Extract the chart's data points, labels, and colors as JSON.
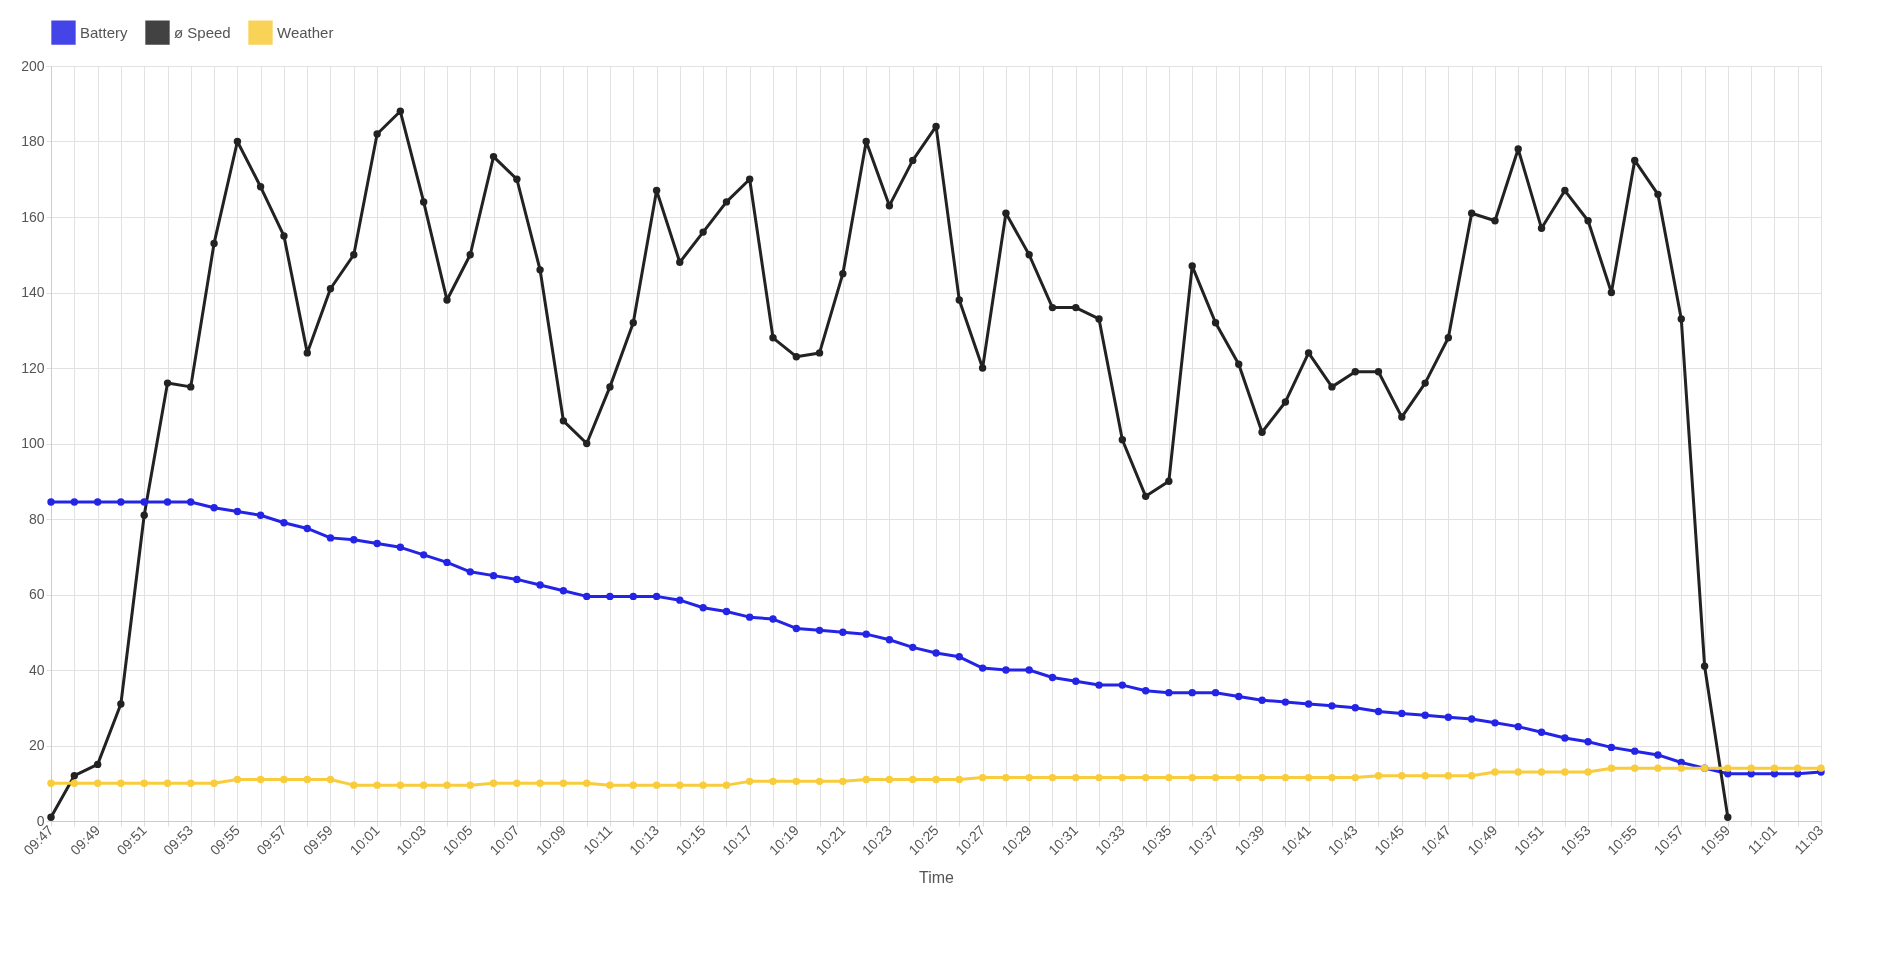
{
  "chart_data": {
    "type": "line",
    "xlabel": "Time",
    "legend": "top",
    "grid": true,
    "marker": "circle",
    "line_style": "solid",
    "x": [
      9.7833,
      9.8,
      9.8167,
      9.8333,
      9.85,
      9.8667,
      9.8833,
      9.9,
      9.9167,
      9.9333,
      9.95,
      9.9667,
      9.9833,
      10,
      10.0167,
      10.0333,
      10.05,
      10.0667,
      10.0833,
      10.1,
      10.1167,
      10.1333,
      10.15,
      10.1667,
      10.1833,
      10.2,
      10.2167,
      10.2333,
      10.25,
      10.2667,
      10.2833,
      10.3,
      10.3167,
      10.3333,
      10.35,
      10.3667,
      10.3833,
      10.4,
      10.4167,
      10.4333,
      10.45,
      10.4667,
      10.4833,
      10.5,
      10.5167,
      10.5333,
      10.55,
      10.5667,
      10.5833,
      10.6,
      10.6167,
      10.6333,
      10.65,
      10.6667,
      10.6833,
      10.7,
      10.7167,
      10.7333,
      10.75,
      10.7667,
      10.7833,
      10.8,
      10.8167,
      10.8333,
      10.85,
      10.8667,
      10.8833,
      10.9,
      10.9167,
      10.9333,
      10.95,
      10.9667,
      10.9833,
      11,
      11.0167,
      11.0333,
      11.05
    ],
    "series": [
      {
        "name": "Battery",
        "color": "#2424e6",
        "values": [
          84.5,
          84.5,
          84.5,
          84.5,
          84.5,
          84.5,
          84.5,
          83,
          82,
          81,
          79,
          77.5,
          75,
          74.5,
          73.5,
          72.5,
          70.5,
          68.5,
          66,
          65,
          64,
          62.5,
          61,
          59.5,
          59.5,
          59.5,
          59.5,
          58.5,
          56.5,
          55.5,
          54,
          53.5,
          51,
          50.5,
          50,
          49.5,
          48,
          46,
          44.5,
          43.5,
          40.5,
          40,
          40,
          38,
          37,
          36,
          36,
          34.5,
          34,
          34,
          34,
          33,
          32,
          31.5,
          31,
          30.5,
          30,
          29,
          28.5,
          28,
          27.5,
          27,
          26,
          25,
          23.5,
          22,
          21,
          19.5,
          18.5,
          17.5,
          15.5,
          14,
          12.5,
          12.5,
          12.5,
          12.5,
          13
        ]
      },
      {
        "name": "ø Speed",
        "color": "#222222",
        "values": [
          1,
          12,
          15,
          31,
          81,
          116,
          115,
          153,
          180,
          168,
          155,
          124,
          141,
          150,
          182,
          188,
          164,
          138,
          150,
          176,
          170,
          146,
          106,
          100,
          115,
          132,
          167,
          148,
          156,
          164,
          170,
          128,
          123,
          124,
          145,
          180,
          163,
          175,
          184,
          138,
          120,
          161,
          150,
          136,
          136,
          133,
          101,
          86,
          90,
          147,
          132,
          121,
          103,
          111,
          124,
          115,
          119,
          119,
          107,
          116,
          128,
          161,
          159,
          178,
          157,
          167,
          159,
          140,
          175,
          166,
          133,
          41,
          1,
          null,
          null,
          null,
          null
        ]
      },
      {
        "name": "Weather",
        "color": "#f9cc3c",
        "values": [
          10,
          10,
          10,
          10,
          10,
          10,
          10,
          10,
          11,
          11,
          11,
          11,
          11,
          9.5,
          9.5,
          9.5,
          9.5,
          9.5,
          9.5,
          10,
          10,
          10,
          10,
          10,
          9.5,
          9.5,
          9.5,
          9.5,
          9.5,
          9.5,
          10.5,
          10.5,
          10.5,
          10.5,
          10.5,
          11,
          11,
          11,
          11,
          11,
          11.5,
          11.5,
          11.5,
          11.5,
          11.5,
          11.5,
          11.5,
          11.5,
          11.5,
          11.5,
          11.5,
          11.5,
          11.5,
          11.5,
          11.5,
          11.5,
          11.5,
          12,
          12,
          12,
          12,
          12,
          13,
          13,
          13,
          13,
          13,
          14,
          14,
          14,
          14,
          14,
          14,
          14,
          14,
          14,
          14
        ]
      }
    ],
    "ylim": [
      0,
      200
    ],
    "yticks": [
      0,
      20,
      40,
      60,
      80,
      100,
      120,
      140,
      160,
      180,
      200
    ],
    "xlim": [
      9.7833,
      11.05
    ],
    "xticks": [
      {
        "value": 9.7833,
        "label": "09:47"
      },
      {
        "value": 9.8,
        "label": null
      },
      {
        "value": 9.8167,
        "label": "09:49"
      },
      {
        "value": 9.8333,
        "label": null
      },
      {
        "value": 9.85,
        "label": "09:51"
      },
      {
        "value": 9.8667,
        "label": null
      },
      {
        "value": 9.8833,
        "label": "09:53"
      },
      {
        "value": 9.9,
        "label": null
      },
      {
        "value": 9.9167,
        "label": "09:55"
      },
      {
        "value": 9.9333,
        "label": null
      },
      {
        "value": 9.95,
        "label": "09:57"
      },
      {
        "value": 9.9667,
        "label": null
      },
      {
        "value": 9.9833,
        "label": "09:59"
      },
      {
        "value": 10,
        "label": null
      },
      {
        "value": 10.0167,
        "label": "10:01"
      },
      {
        "value": 10.0333,
        "label": null
      },
      {
        "value": 10.05,
        "label": "10:03"
      },
      {
        "value": 10.0667,
        "label": null
      },
      {
        "value": 10.0833,
        "label": "10:05"
      },
      {
        "value": 10.1,
        "label": null
      },
      {
        "value": 10.1167,
        "label": "10:07"
      },
      {
        "value": 10.1333,
        "label": null
      },
      {
        "value": 10.15,
        "label": "10:09"
      },
      {
        "value": 10.1667,
        "label": null
      },
      {
        "value": 10.1833,
        "label": "10:11"
      },
      {
        "value": 10.2,
        "label": null
      },
      {
        "value": 10.2167,
        "label": "10:13"
      },
      {
        "value": 10.2333,
        "label": null
      },
      {
        "value": 10.25,
        "label": "10:15"
      },
      {
        "value": 10.2667,
        "label": null
      },
      {
        "value": 10.2833,
        "label": "10:17"
      },
      {
        "value": 10.3,
        "label": null
      },
      {
        "value": 10.3167,
        "label": "10:19"
      },
      {
        "value": 10.3333,
        "label": null
      },
      {
        "value": 10.35,
        "label": "10:21"
      },
      {
        "value": 10.3667,
        "label": null
      },
      {
        "value": 10.3833,
        "label": "10:23"
      },
      {
        "value": 10.4,
        "label": null
      },
      {
        "value": 10.4167,
        "label": "10:25"
      },
      {
        "value": 10.4333,
        "label": null
      },
      {
        "value": 10.45,
        "label": "10:27"
      },
      {
        "value": 10.4667,
        "label": null
      },
      {
        "value": 10.4833,
        "label": "10:29"
      },
      {
        "value": 10.5,
        "label": null
      },
      {
        "value": 10.5167,
        "label": "10:31"
      },
      {
        "value": 10.5333,
        "label": null
      },
      {
        "value": 10.55,
        "label": "10:33"
      },
      {
        "value": 10.5667,
        "label": null
      },
      {
        "value": 10.5833,
        "label": "10:35"
      },
      {
        "value": 10.6,
        "label": null
      },
      {
        "value": 10.6167,
        "label": "10:37"
      },
      {
        "value": 10.6333,
        "label": null
      },
      {
        "value": 10.65,
        "label": "10:39"
      },
      {
        "value": 10.6667,
        "label": null
      },
      {
        "value": 10.6833,
        "label": "10:41"
      },
      {
        "value": 10.7,
        "label": null
      },
      {
        "value": 10.7167,
        "label": "10:43"
      },
      {
        "value": 10.7333,
        "label": null
      },
      {
        "value": 10.75,
        "label": "10:45"
      },
      {
        "value": 10.7667,
        "label": null
      },
      {
        "value": 10.7833,
        "label": "10:47"
      },
      {
        "value": 10.8,
        "label": null
      },
      {
        "value": 10.8167,
        "label": "10:49"
      },
      {
        "value": 10.8333,
        "label": null
      },
      {
        "value": 10.85,
        "label": "10:51"
      },
      {
        "value": 10.8667,
        "label": null
      },
      {
        "value": 10.8833,
        "label": "10:53"
      },
      {
        "value": 10.9,
        "label": null
      },
      {
        "value": 10.9167,
        "label": "10:55"
      },
      {
        "value": 10.9333,
        "label": null
      },
      {
        "value": 10.95,
        "label": "10:57"
      },
      {
        "value": 10.9667,
        "label": null
      },
      {
        "value": 10.9833,
        "label": "10:59"
      },
      {
        "value": 11,
        "label": null
      },
      {
        "value": 11.0167,
        "label": "11:01"
      },
      {
        "value": 11.0333,
        "label": null
      },
      {
        "value": 11.05,
        "label": "11:03"
      }
    ]
  }
}
